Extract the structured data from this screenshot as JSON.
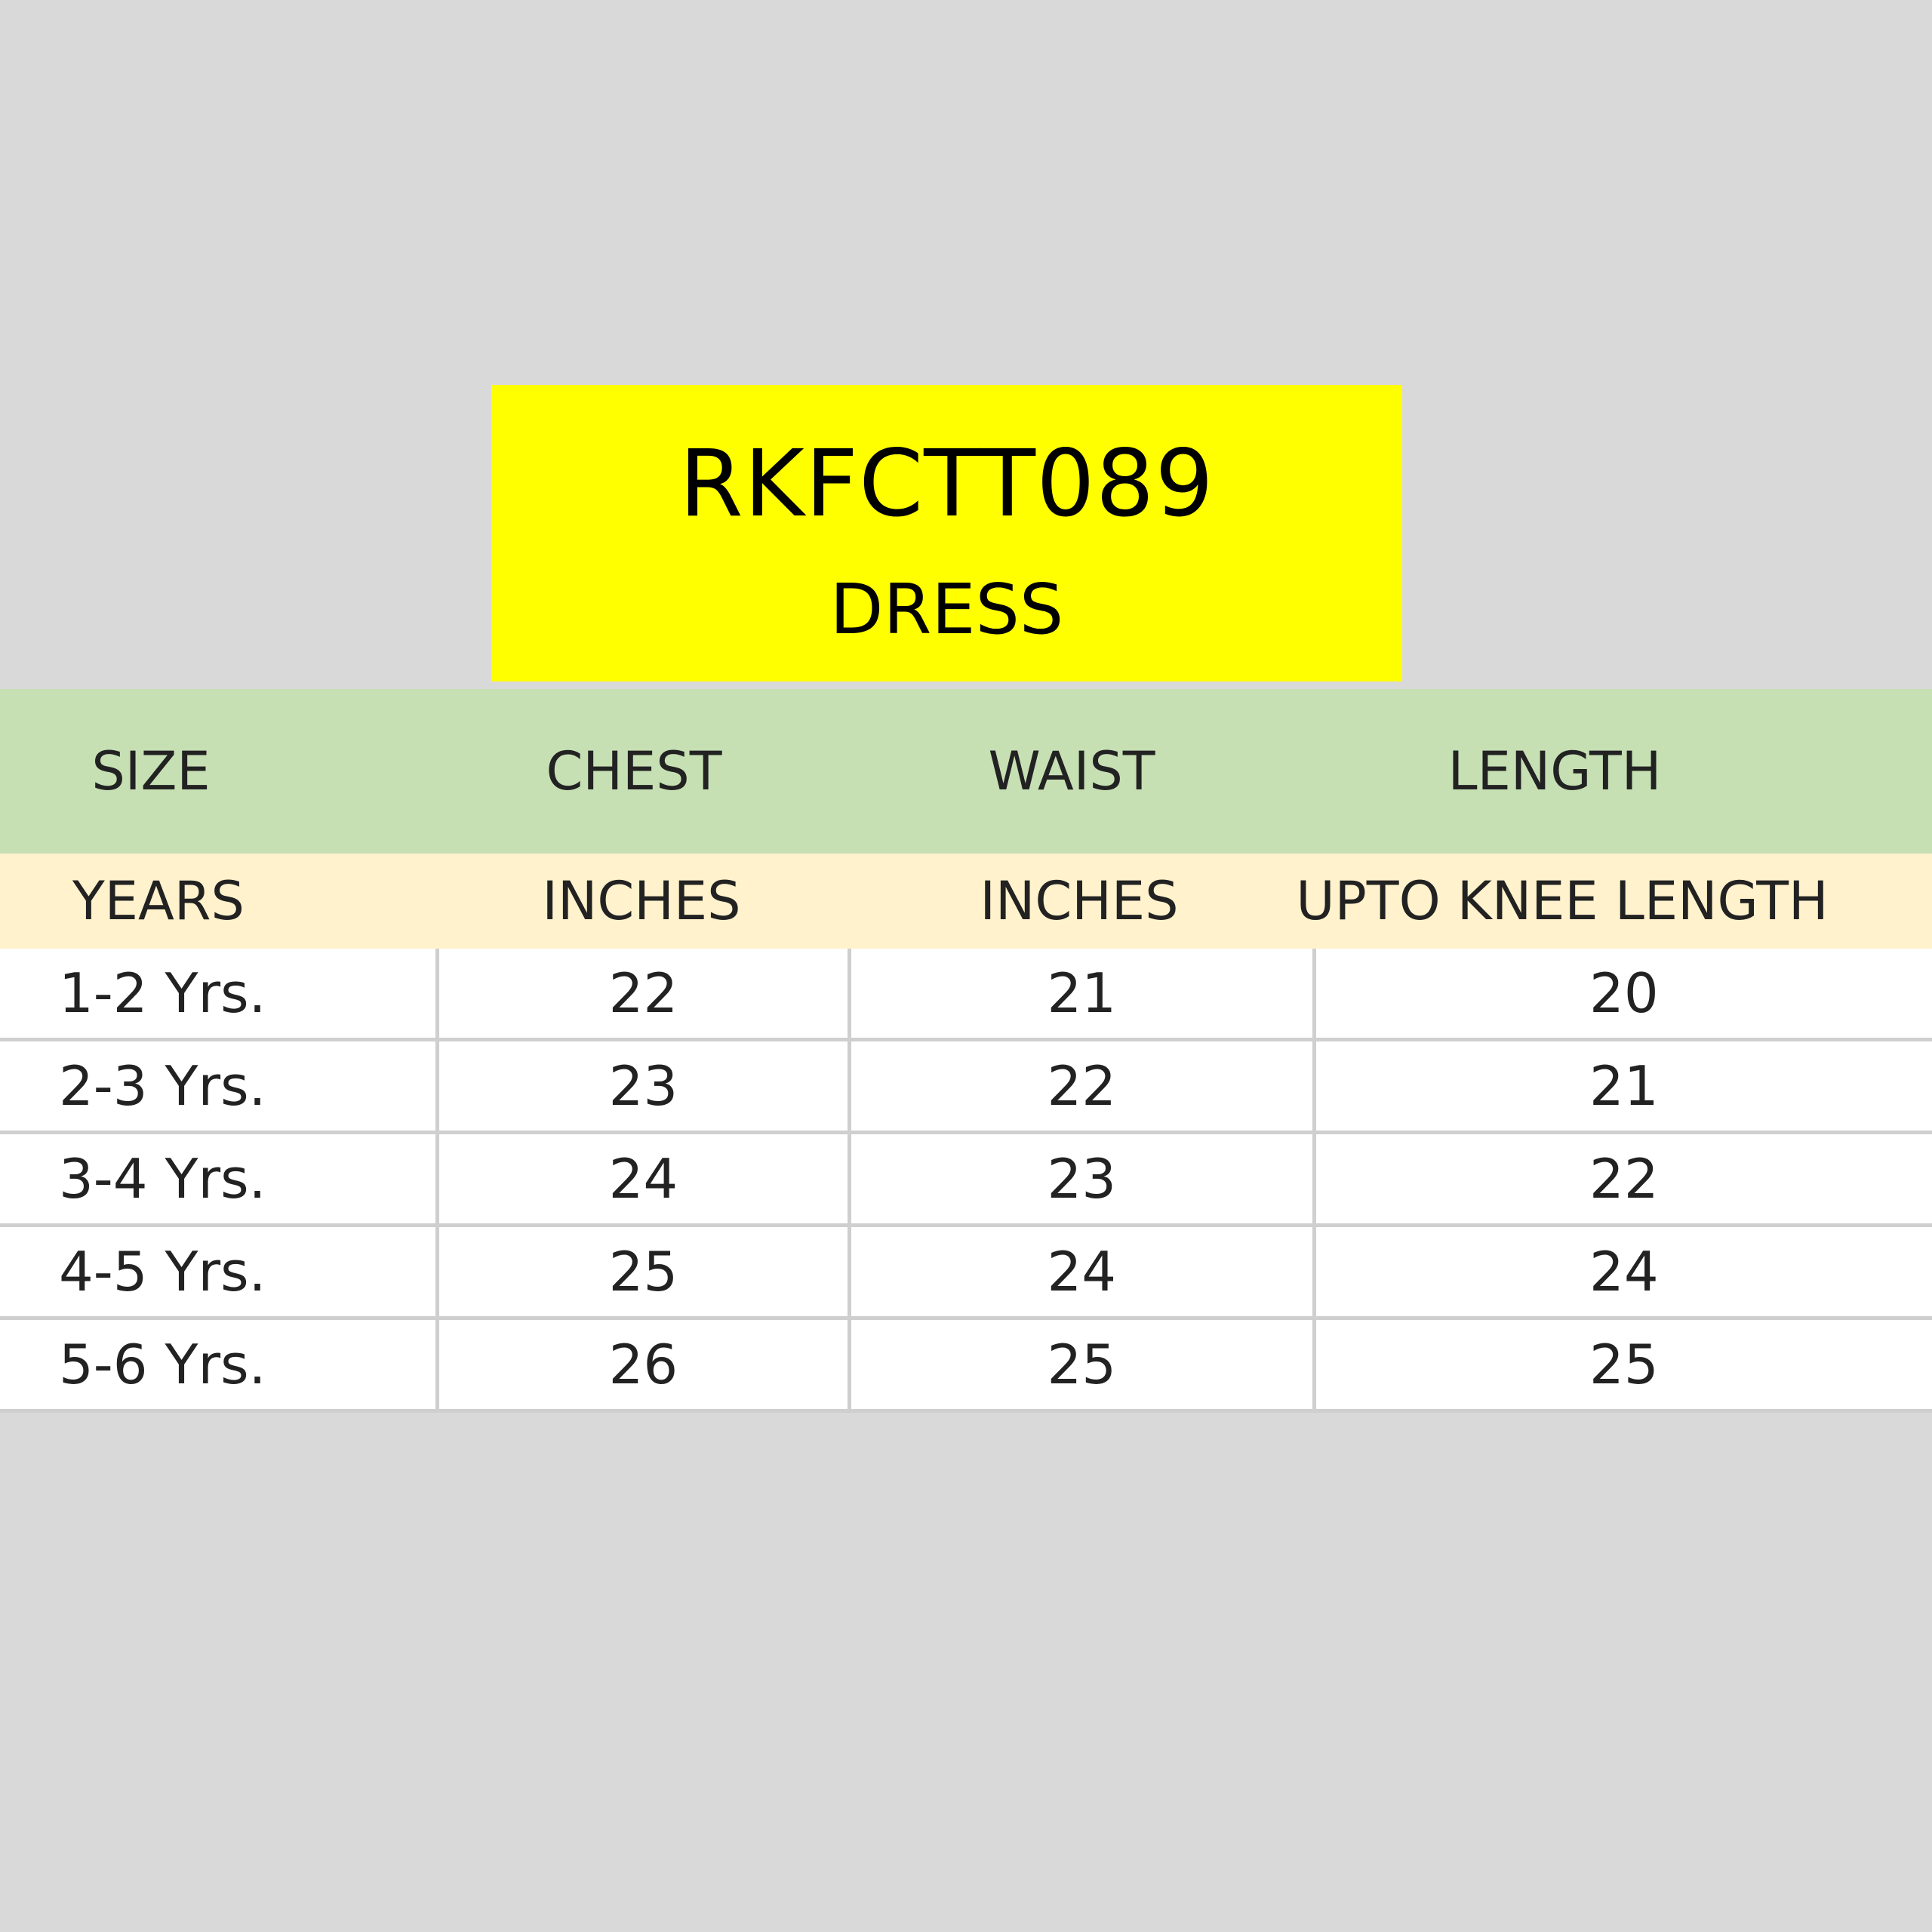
{
  "title": {
    "code": "RKFCTT089",
    "subtitle": "DRESS"
  },
  "colors": {
    "background": "#d9d9d9",
    "title_box": "#ffff00",
    "header_band": "#c6e0b4",
    "units_band": "#fff2cc"
  },
  "table": {
    "headers": [
      "SIZE",
      "CHEST",
      "WAIST",
      "LENGTH"
    ],
    "units": [
      "YEARS",
      "INCHES",
      "INCHES",
      "UPTO KNEE LENGTH"
    ],
    "rows": [
      [
        "1-2 Yrs.",
        "22",
        "21",
        "20"
      ],
      [
        "2-3 Yrs.",
        "23",
        "22",
        "21"
      ],
      [
        "3-4 Yrs.",
        "24",
        "23",
        "22"
      ],
      [
        "4-5 Yrs.",
        "25",
        "24",
        "24"
      ],
      [
        "5-6 Yrs.",
        "26",
        "25",
        "25"
      ]
    ]
  }
}
